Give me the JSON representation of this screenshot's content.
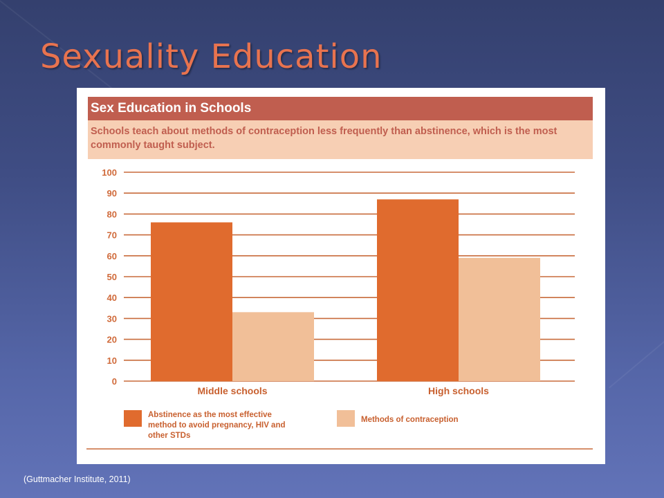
{
  "slide": {
    "title": "Sexuality Education",
    "source": "(Guttmacher Institute, 2011)"
  },
  "colors": {
    "title": "#e8734f",
    "header_bar": "#c05e4f",
    "subtitle_bg": "#f7cfb4",
    "series_abstinence": "#e06b2e",
    "series_contraception": "#f1bf98"
  },
  "chart_data": {
    "type": "bar",
    "title": "Sex Education in Schools",
    "subtitle": "Schools teach about methods of contraception less frequently than abstinence, which is the most commonly taught subject.",
    "categories": [
      "Middle schools",
      "High schools"
    ],
    "series": [
      {
        "name": "Abstinence as the most effective method to avoid pregnancy, HIV and other STDs",
        "values": [
          76,
          87
        ]
      },
      {
        "name": "Methods of contraception",
        "values": [
          33,
          59
        ]
      }
    ],
    "ylim": [
      0,
      100
    ],
    "yticks": [
      0,
      10,
      20,
      30,
      40,
      50,
      60,
      70,
      80,
      90,
      100
    ],
    "grid": true,
    "legend": "bottom",
    "xlabel": "",
    "ylabel": ""
  }
}
